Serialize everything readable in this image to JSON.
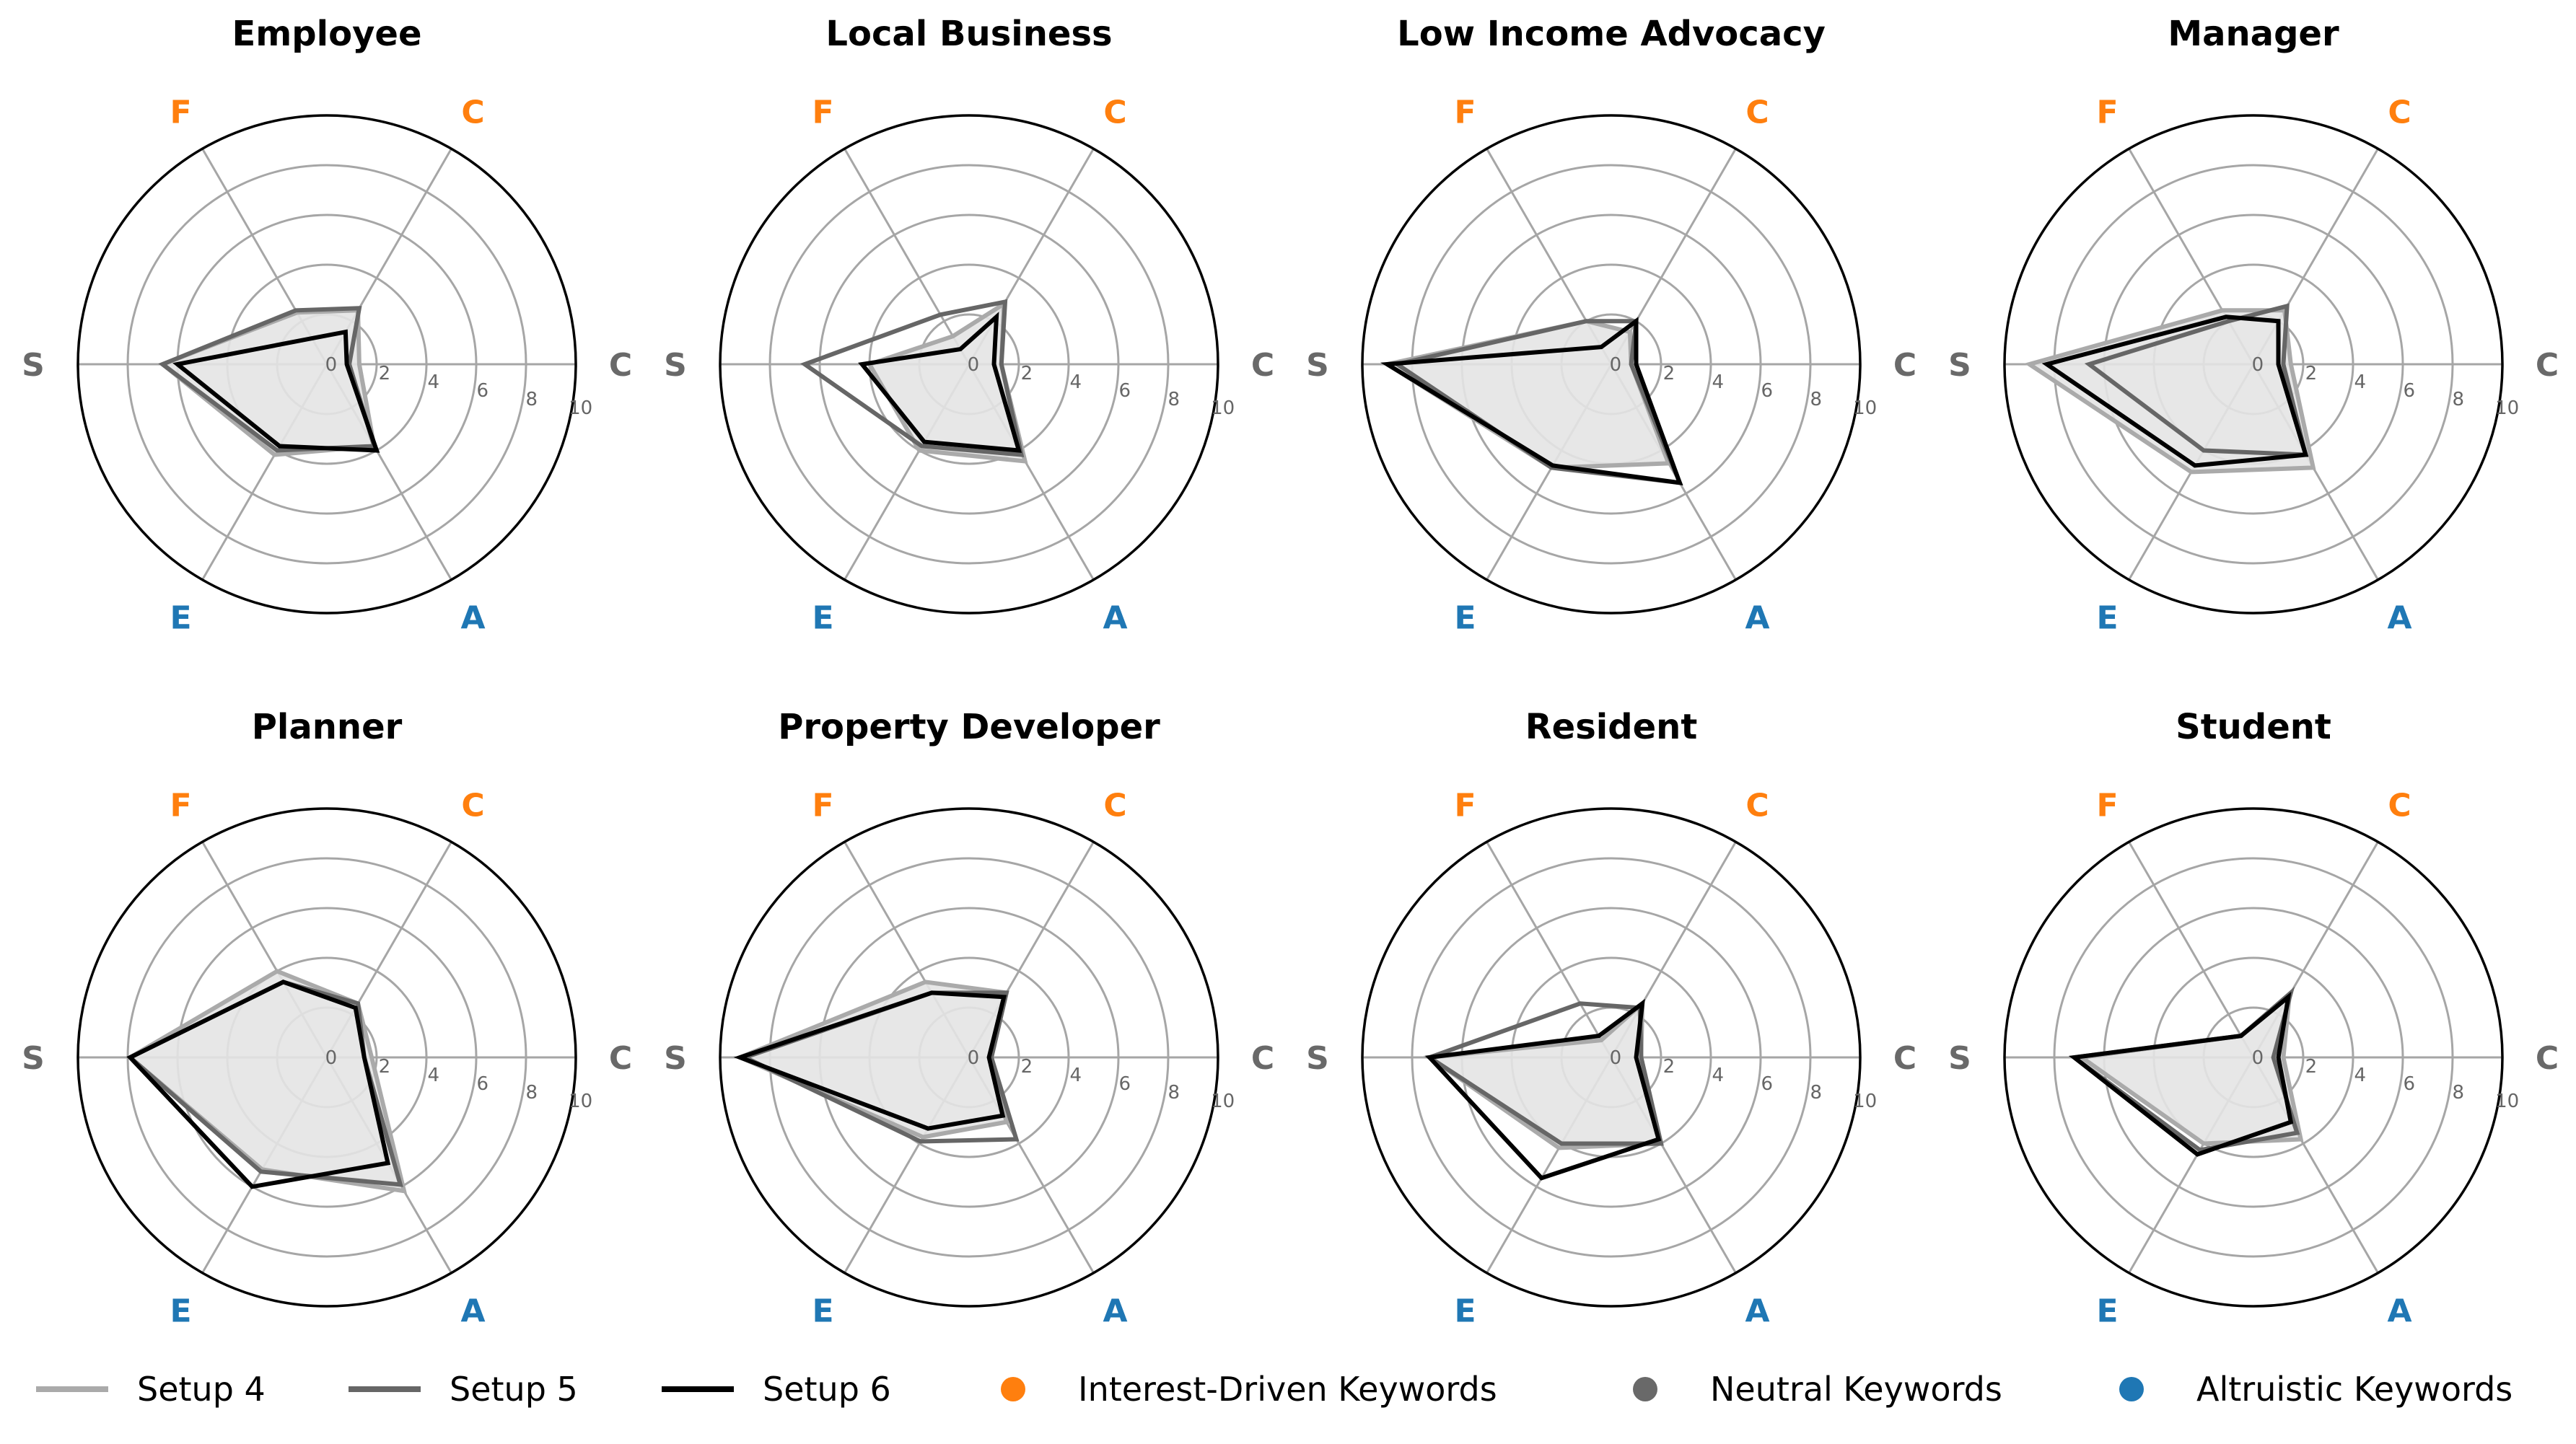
{
  "colors": {
    "interest": "#ff7f0e",
    "neutral": "#696969",
    "altruistic": "#1f77b4",
    "setup4": "#aaaaaa",
    "setup5": "#666666",
    "setup6": "#000000",
    "grid": "#a6a6a6",
    "fill": "#e4e4e4"
  },
  "legend": {
    "items": [
      {
        "kind": "line",
        "label": "Setup 4",
        "color": "#aaaaaa"
      },
      {
        "kind": "line",
        "label": "Setup 5",
        "color": "#666666"
      },
      {
        "kind": "line",
        "label": "Setup 6",
        "color": "#000000"
      },
      {
        "kind": "dot",
        "label": "Interest-Driven Keywords",
        "color": "#ff7f0e"
      },
      {
        "kind": "dot",
        "label": "Neutral Keywords",
        "color": "#696969"
      },
      {
        "kind": "dot",
        "label": "Altruistic Keywords",
        "color": "#1f77b4"
      }
    ]
  },
  "chart_data": {
    "type": "radar",
    "axes": [
      {
        "label": "C",
        "group": "neutral"
      },
      {
        "label": "C",
        "group": "interest"
      },
      {
        "label": "F",
        "group": "interest"
      },
      {
        "label": "S",
        "group": "neutral"
      },
      {
        "label": "E",
        "group": "altruistic"
      },
      {
        "label": "A",
        "group": "altruistic"
      }
    ],
    "rlim": [
      0,
      10
    ],
    "rticks": [
      "0",
      "2",
      "4",
      "6",
      "8",
      "10"
    ],
    "series_names": [
      "Setup 4",
      "Setup 5",
      "Setup 6"
    ],
    "panels": [
      {
        "title": "Employee",
        "series": [
          [
            1.3,
            2.5,
            2.4,
            6.6,
            4.2,
            3.8
          ],
          [
            0.9,
            2.6,
            2.5,
            6.6,
            4.0,
            3.8
          ],
          [
            0.8,
            1.5,
            1.2,
            6.0,
            3.8,
            4.0
          ]
        ]
      },
      {
        "title": "Local Business",
        "series": [
          [
            1.3,
            2.8,
            1.3,
            4.0,
            4.0,
            4.5
          ],
          [
            1.3,
            2.9,
            2.3,
            6.6,
            3.8,
            4.2
          ],
          [
            1.0,
            2.2,
            0.7,
            4.3,
            3.6,
            4.0
          ]
        ]
      },
      {
        "title": "Low Income Advocacy",
        "series": [
          [
            0.8,
            1.5,
            2.0,
            9.0,
            4.8,
            4.6
          ],
          [
            0.8,
            2.0,
            2.0,
            8.6,
            4.8,
            5.5
          ],
          [
            1.0,
            2.0,
            0.8,
            9.0,
            4.7,
            5.5
          ]
        ]
      },
      {
        "title": "Manager",
        "series": [
          [
            1.5,
            2.5,
            2.5,
            9.0,
            5.0,
            4.8
          ],
          [
            1.2,
            2.7,
            2.0,
            6.6,
            4.0,
            4.2
          ],
          [
            1.0,
            2.0,
            2.2,
            8.3,
            4.7,
            4.2
          ]
        ]
      },
      {
        "title": "Planner",
        "series": [
          [
            1.8,
            2.5,
            4.0,
            7.9,
            5.2,
            6.2
          ],
          [
            1.5,
            2.5,
            3.5,
            7.9,
            5.3,
            5.9
          ],
          [
            1.5,
            2.3,
            3.5,
            7.9,
            6.0,
            4.9
          ]
        ]
      },
      {
        "title": "Property Developer",
        "series": [
          [
            0.9,
            3.0,
            3.5,
            9.2,
            3.7,
            3.0
          ],
          [
            0.9,
            3.0,
            3.0,
            9.0,
            3.9,
            3.8
          ],
          [
            0.8,
            2.8,
            3.0,
            9.2,
            3.3,
            2.7
          ]
        ]
      },
      {
        "title": "Resident",
        "series": [
          [
            1.2,
            2.5,
            0.8,
            7.3,
            4.2,
            4.0
          ],
          [
            1.2,
            2.3,
            2.5,
            7.3,
            4.0,
            4.0
          ],
          [
            1.0,
            2.5,
            1.0,
            7.3,
            5.6,
            3.8
          ]
        ]
      },
      {
        "title": "Student",
        "series": [
          [
            1.2,
            2.9,
            1.0,
            6.9,
            4.0,
            3.8
          ],
          [
            0.8,
            3.0,
            1.0,
            7.2,
            4.3,
            3.5
          ],
          [
            1.0,
            2.8,
            1.0,
            7.2,
            4.5,
            3.0
          ]
        ]
      }
    ]
  }
}
